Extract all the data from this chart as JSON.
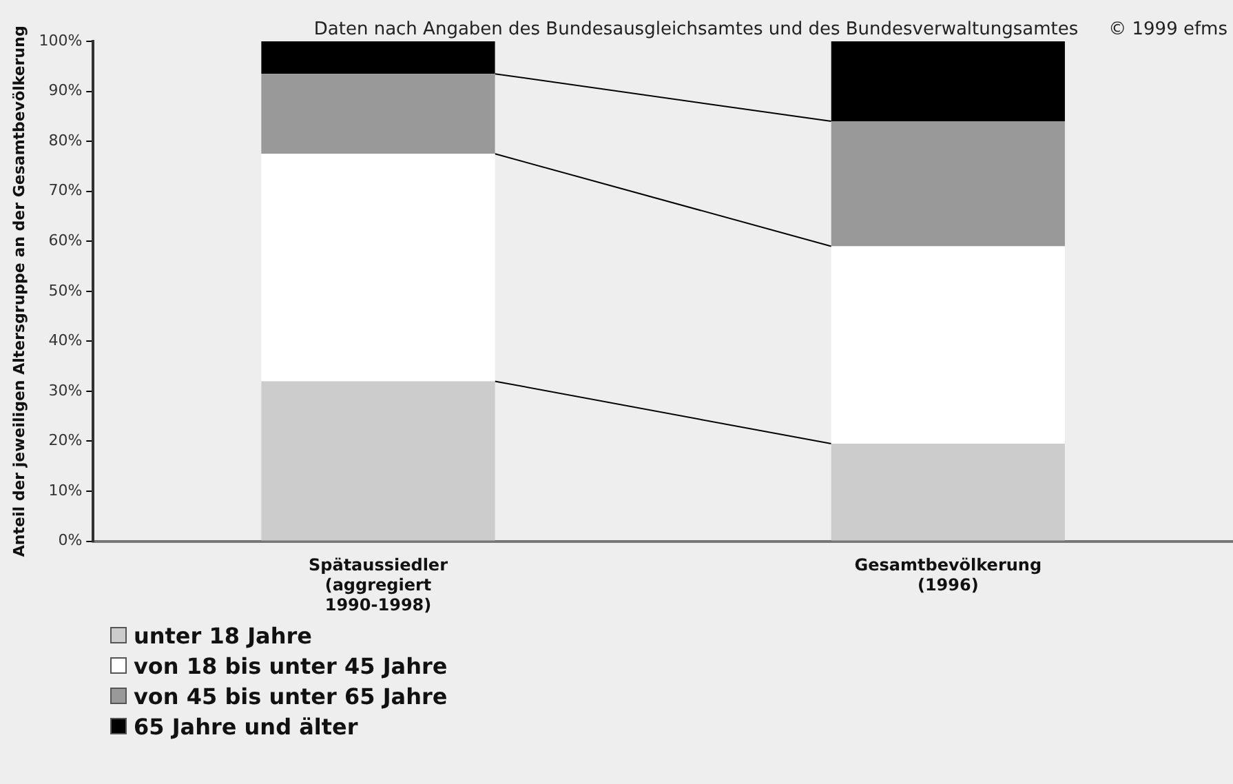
{
  "chart_data": {
    "type": "bar",
    "stacked": true,
    "ylabel": "Anteil der jeweiligen Altersgruppe an der Gesamtbevölkerung",
    "annotations": [
      "Daten nach Angaben des Bundesausgleichsamtes und des Bundesverwaltungsamtes",
      "© 1999 efms"
    ],
    "categories": [
      "Spätaussiedler (aggregiert 1990-1998)",
      "Gesamtbevölkerung (1996)"
    ],
    "series": [
      {
        "name": "unter 18 Jahre",
        "color": "#cccccc",
        "values": [
          32,
          19.5
        ]
      },
      {
        "name": "von 18 bis unter 45 Jahre",
        "color": "#ffffff",
        "values": [
          45.5,
          39.5
        ]
      },
      {
        "name": "von 45 bis unter 65 Jahre",
        "color": "#999999",
        "values": [
          16,
          25
        ]
      },
      {
        "name": "65 Jahre und älter",
        "color": "#000000",
        "values": [
          6.5,
          16
        ]
      }
    ],
    "ylim": [
      0,
      100
    ],
    "yticks": [
      {
        "value": 0,
        "label": "0%"
      },
      {
        "value": 10,
        "label": "10%"
      },
      {
        "value": 20,
        "label": "20%"
      },
      {
        "value": 30,
        "label": "30%"
      },
      {
        "value": 40,
        "label": "40%"
      },
      {
        "value": 50,
        "label": "50%"
      },
      {
        "value": 60,
        "label": "60%"
      },
      {
        "value": 70,
        "label": "70%"
      },
      {
        "value": 80,
        "label": "80%"
      },
      {
        "value": 90,
        "label": "90%"
      },
      {
        "value": 100,
        "label": "100%"
      }
    ],
    "grid": false,
    "legend": "bottom left"
  }
}
